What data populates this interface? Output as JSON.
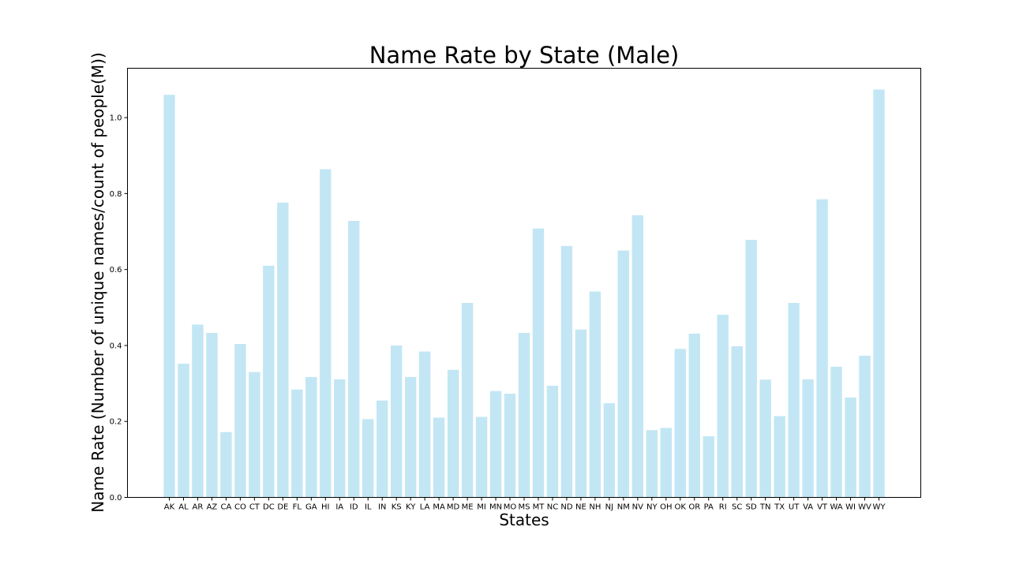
{
  "chart_data": {
    "type": "bar",
    "title": "Name Rate by State (Male)",
    "xlabel": "States",
    "ylabel": "Name Rate (Number of unique names/count of people(M))",
    "ylim": [
      0,
      1.13
    ],
    "yticks": [
      0.0,
      0.2,
      0.4,
      0.6,
      0.8,
      1.0
    ],
    "ytick_labels": [
      "0.0",
      "0.2",
      "0.4",
      "0.6",
      "0.8",
      "1.0"
    ],
    "grid": false,
    "bar_color": "#c2e6f4",
    "categories": [
      "AK",
      "AL",
      "AR",
      "AZ",
      "CA",
      "CO",
      "CT",
      "DC",
      "DE",
      "FL",
      "GA",
      "HI",
      "IA",
      "ID",
      "IL",
      "IN",
      "KS",
      "KY",
      "LA",
      "MA",
      "MD",
      "ME",
      "MI",
      "MN",
      "MO",
      "MS",
      "MT",
      "NC",
      "ND",
      "NE",
      "NH",
      "NJ",
      "NM",
      "NV",
      "NY",
      "OH",
      "OK",
      "OR",
      "PA",
      "RI",
      "SC",
      "SD",
      "TN",
      "TX",
      "UT",
      "VA",
      "VT",
      "WA",
      "WI",
      "WV",
      "WY"
    ],
    "values": [
      1.06,
      0.352,
      0.455,
      0.433,
      0.172,
      0.404,
      0.33,
      0.61,
      0.776,
      0.284,
      0.317,
      0.864,
      0.311,
      0.728,
      0.206,
      0.255,
      0.4,
      0.317,
      0.384,
      0.21,
      0.336,
      0.512,
      0.212,
      0.28,
      0.273,
      0.433,
      0.708,
      0.294,
      0.662,
      0.442,
      0.542,
      0.248,
      0.65,
      0.743,
      0.177,
      0.183,
      0.391,
      0.431,
      0.161,
      0.481,
      0.398,
      0.678,
      0.31,
      0.214,
      0.512,
      0.311,
      0.785,
      0.344,
      0.263,
      0.373,
      1.074
    ]
  }
}
